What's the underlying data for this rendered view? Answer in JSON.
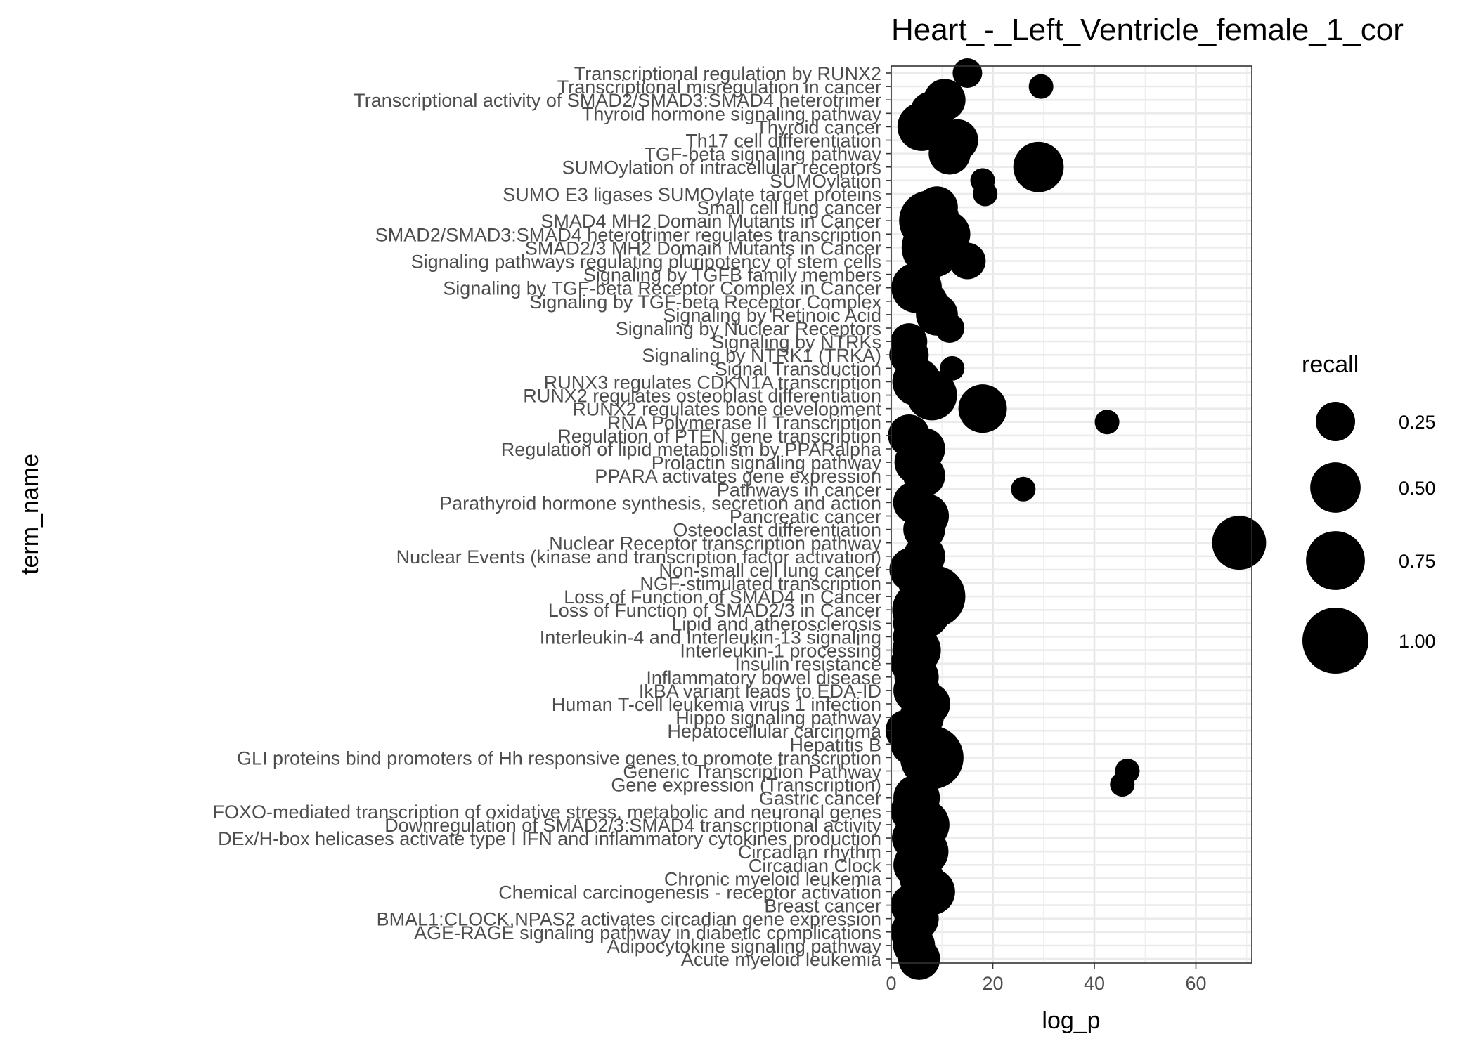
{
  "chart_data": {
    "type": "scatter",
    "title": "Heart_-_Left_Ventricle_female_1_cor",
    "xlabel": "log_p",
    "ylabel": "term_name",
    "xlim": [
      0,
      71
    ],
    "x_ticks": [
      0,
      20,
      40,
      60
    ],
    "grid": true,
    "legend": {
      "title": "recall",
      "position": "right",
      "entries": [
        {
          "label": "0.25",
          "value": 0.25
        },
        {
          "label": "0.50",
          "value": 0.5
        },
        {
          "label": "0.75",
          "value": 0.75
        },
        {
          "label": "1.00",
          "value": 1.0
        }
      ]
    },
    "terms": [
      "Acute myeloid leukemia",
      "Adipocytokine signaling pathway",
      "AGE-RAGE signaling pathway in diabetic complications",
      "BMAL1:CLOCK,NPAS2 activates circadian gene expression",
      "Breast cancer",
      "Chemical carcinogenesis - receptor activation",
      "Chronic myeloid leukemia",
      "Circadian Clock",
      "Circadian rhythm",
      "DEx/H-box helicases activate type I IFN and inflammatory cytokines production ",
      "Downregulation of SMAD2/3:SMAD4 transcriptional activity",
      "FOXO-mediated transcription of oxidative stress, metabolic and neuronal genes",
      "Gastric cancer",
      "Gene expression (Transcription)",
      "Generic Transcription Pathway",
      "GLI proteins bind promoters of Hh responsive genes to promote transcription",
      "Hepatitis B",
      "Hepatocellular carcinoma",
      "Hippo signaling pathway",
      "Human T-cell leukemia virus 1 infection",
      "IkBA variant leads to EDA-ID",
      "Inflammatory bowel disease",
      "Insulin resistance",
      "Interleukin-1 processing",
      "Interleukin-4 and Interleukin-13 signaling",
      "Lipid and atherosclerosis",
      "Loss of Function of SMAD2/3 in Cancer",
      "Loss of Function of SMAD4 in Cancer",
      "NGF-stimulated transcription",
      "Non-small cell lung cancer",
      "Nuclear Events (kinase and transcription factor activation)",
      "Nuclear Receptor transcription pathway",
      "Osteoclast differentiation",
      "Pancreatic cancer",
      "Parathyroid hormone synthesis, secretion and action",
      "Pathways in cancer",
      "PPARA activates gene expression",
      "Prolactin signaling pathway",
      "Regulation of lipid metabolism by PPARalpha",
      "Regulation of PTEN gene transcription",
      "RNA Polymerase II Transcription",
      "RUNX2 regulates bone development",
      "RUNX2 regulates osteoblast differentiation",
      "RUNX3 regulates CDKN1A transcription",
      "Signal Transduction",
      "Signaling by NTRK1 (TRKA)",
      "Signaling by NTRKs",
      "Signaling by Nuclear Receptors",
      "Signaling by Retinoic Acid",
      "Signaling by TGF-beta Receptor Complex",
      "Signaling by TGF-beta Receptor Complex in Cancer",
      "Signaling by TGFB family members",
      "Signaling pathways regulating pluripotency of stem cells",
      "SMAD2/3 MH2 Domain Mutants in Cancer",
      "SMAD2/SMAD3:SMAD4 heterotrimer regulates transcription",
      "SMAD4 MH2 Domain Mutants in Cancer",
      "Small cell lung cancer",
      "SUMO E3 ligases SUMOylate target proteins",
      "SUMOylation",
      "SUMOylation of intracellular receptors",
      "TGF-beta signaling pathway",
      "Th17 cell differentiation",
      "Thyroid cancer",
      "Thyroid hormone signaling pathway",
      "Transcriptional activity of SMAD2/SMAD3:SMAD4 heterotrimer",
      "Transcriptional misregulation in cancer",
      "Transcriptional regulation by RUNX2"
    ],
    "points": [
      {
        "term": "Acute myeloid leukemia",
        "log_p": 5.5,
        "recall": 0.3
      },
      {
        "term": "Adipocytokine signaling pathway",
        "log_p": 4.5,
        "recall": 0.3
      },
      {
        "term": "AGE-RAGE signaling pathway in diabetic complications",
        "log_p": 4.0,
        "recall": 0.3
      },
      {
        "term": "BMAL1:CLOCK,NPAS2 activates circadian gene expression",
        "log_p": 5.0,
        "recall": 0.35
      },
      {
        "term": "Breast cancer",
        "log_p": 4.0,
        "recall": 0.3
      },
      {
        "term": "Chemical carcinogenesis - receptor activation",
        "log_p": 8.0,
        "recall": 0.4
      },
      {
        "term": "Chronic myeloid leukemia",
        "log_p": 6.0,
        "recall": 0.35
      },
      {
        "term": "Circadian Clock",
        "log_p": 5.0,
        "recall": 0.4
      },
      {
        "term": "Circadian rhythm",
        "log_p": 6.5,
        "recall": 0.45
      },
      {
        "term": "DEx/H-box helicases activate type I IFN and inflammatory cytokines production ",
        "log_p": 4.5,
        "recall": 0.35
      },
      {
        "term": "Downregulation of SMAD2/3:SMAD4 transcriptional activity",
        "log_p": 6.5,
        "recall": 0.5
      },
      {
        "term": "FOXO-mediated transcription of oxidative stress, metabolic and neuronal genes",
        "log_p": 4.0,
        "recall": 0.3
      },
      {
        "term": "Gastric cancer",
        "log_p": 5.0,
        "recall": 0.4
      },
      {
        "term": "Gene expression (Transcription)",
        "log_p": 45.5,
        "recall": 0.05
      },
      {
        "term": "Generic Transcription Pathway",
        "log_p": 46.5,
        "recall": 0.05
      },
      {
        "term": "GLI proteins bind promoters of Hh responsive genes to promote transcription",
        "log_p": 8.0,
        "recall": 0.9
      },
      {
        "term": "Hepatitis B",
        "log_p": 4.0,
        "recall": 0.3
      },
      {
        "term": "Hepatocellular carcinoma",
        "log_p": 3.0,
        "recall": 0.3
      },
      {
        "term": "Hippo signaling pathway",
        "log_p": 6.0,
        "recall": 0.35
      },
      {
        "term": "Human T-cell leukemia virus 1 infection",
        "log_p": 7.5,
        "recall": 0.3
      },
      {
        "term": "IkBA variant leads to EDA-ID",
        "log_p": 5.0,
        "recall": 0.4
      },
      {
        "term": "Inflammatory bowel disease",
        "log_p": 5.0,
        "recall": 0.35
      },
      {
        "term": "Insulin resistance",
        "log_p": 4.0,
        "recall": 0.3
      },
      {
        "term": "Interleukin-1 processing",
        "log_p": 5.0,
        "recall": 0.45
      },
      {
        "term": "Interleukin-4 and Interleukin-13 signaling",
        "log_p": 4.5,
        "recall": 0.3
      },
      {
        "term": "Lipid and atherosclerosis",
        "log_p": 4.5,
        "recall": 0.3
      },
      {
        "term": "Loss of Function of SMAD2/3 in Cancer",
        "log_p": 6.0,
        "recall": 0.75
      },
      {
        "term": "Loss of Function of SMAD4 in Cancer",
        "log_p": 8.5,
        "recall": 0.85
      },
      {
        "term": "NGF-stimulated transcription",
        "log_p": 6.0,
        "recall": 0.4
      },
      {
        "term": "Non-small cell lung cancer",
        "log_p": 4.0,
        "recall": 0.35
      },
      {
        "term": "Nuclear Events (kinase and transcription factor activation)",
        "log_p": 6.5,
        "recall": 0.3
      },
      {
        "term": "Nuclear Receptor transcription pathway",
        "log_p": 68.5,
        "recall": 0.6
      },
      {
        "term": "Osteoclast differentiation",
        "log_p": 6.5,
        "recall": 0.3
      },
      {
        "term": "Pancreatic cancer",
        "log_p": 7.0,
        "recall": 0.35
      },
      {
        "term": "Parathyroid hormone synthesis, secretion and action",
        "log_p": 4.5,
        "recall": 0.3
      },
      {
        "term": "Pathways in cancer",
        "log_p": 26.0,
        "recall": 0.05
      },
      {
        "term": "PPARA activates gene expression",
        "log_p": 6.5,
        "recall": 0.3
      },
      {
        "term": "Prolactin signaling pathway",
        "log_p": 5.0,
        "recall": 0.35
      },
      {
        "term": "Regulation of lipid metabolism by PPARalpha",
        "log_p": 6.5,
        "recall": 0.3
      },
      {
        "term": "Regulation of PTEN gene transcription",
        "log_p": 3.5,
        "recall": 0.3
      },
      {
        "term": "RNA Polymerase II Transcription",
        "log_p": 42.5,
        "recall": 0.05
      },
      {
        "term": "RUNX2 regulates bone development",
        "log_p": 18.0,
        "recall": 0.45
      },
      {
        "term": "RUNX2 regulates osteoblast differentiation",
        "log_p": 8.0,
        "recall": 0.5
      },
      {
        "term": "RUNX3 regulates CDKN1A transcription",
        "log_p": 5.0,
        "recall": 0.45
      },
      {
        "term": "Signal Transduction",
        "log_p": 12.0,
        "recall": 0.05
      },
      {
        "term": "Signaling by NTRK1 (TRKA)",
        "log_p": 3.5,
        "recall": 0.25
      },
      {
        "term": "Signaling by NTRKs",
        "log_p": 3.5,
        "recall": 0.2
      },
      {
        "term": "Signaling by Nuclear Receptors",
        "log_p": 11.5,
        "recall": 0.1
      },
      {
        "term": "Signaling by Retinoic Acid",
        "log_p": 9.0,
        "recall": 0.3
      },
      {
        "term": "Signaling by TGF-beta Receptor Complex",
        "log_p": 7.5,
        "recall": 0.2
      },
      {
        "term": "Signaling by TGF-beta Receptor Complex in Cancer",
        "log_p": 5.0,
        "recall": 0.5
      },
      {
        "term": "Signaling by TGFB family members",
        "log_p": 6.0,
        "recall": 0.15
      },
      {
        "term": "Signaling pathways regulating pluripotency of stem cells",
        "log_p": 15.0,
        "recall": 0.2
      },
      {
        "term": "SMAD2/3 MH2 Domain Mutants in Cancer",
        "log_p": 8.0,
        "recall": 0.8
      },
      {
        "term": "SMAD2/SMAD3:SMAD4 heterotrimer regulates transcription",
        "log_p": 11.0,
        "recall": 0.4
      },
      {
        "term": "SMAD4 MH2 Domain Mutants in Cancer",
        "log_p": 7.5,
        "recall": 0.8
      },
      {
        "term": "Small cell lung cancer",
        "log_p": 9.0,
        "recall": 0.3
      },
      {
        "term": "SUMO E3 ligases SUMOylate target proteins",
        "log_p": 18.5,
        "recall": 0.05
      },
      {
        "term": "SUMOylation",
        "log_p": 18.0,
        "recall": 0.05
      },
      {
        "term": "SUMOylation of intracellular receptors",
        "log_p": 29.0,
        "recall": 0.5
      },
      {
        "term": "TGF-beta signaling pathway",
        "log_p": 11.5,
        "recall": 0.3
      },
      {
        "term": "Th17 cell differentiation",
        "log_p": 13.0,
        "recall": 0.3
      },
      {
        "term": "Thyroid cancer",
        "log_p": 6.0,
        "recall": 0.45
      },
      {
        "term": "Thyroid hormone signaling pathway",
        "log_p": 8.0,
        "recall": 0.35
      },
      {
        "term": "Transcriptional activity of SMAD2/SMAD3:SMAD4 heterotrimer",
        "log_p": 10.5,
        "recall": 0.3
      },
      {
        "term": "Transcriptional misregulation in cancer",
        "log_p": 29.5,
        "recall": 0.05
      },
      {
        "term": "Transcriptional regulation by RUNX2",
        "log_p": 15.0,
        "recall": 0.1
      }
    ]
  }
}
